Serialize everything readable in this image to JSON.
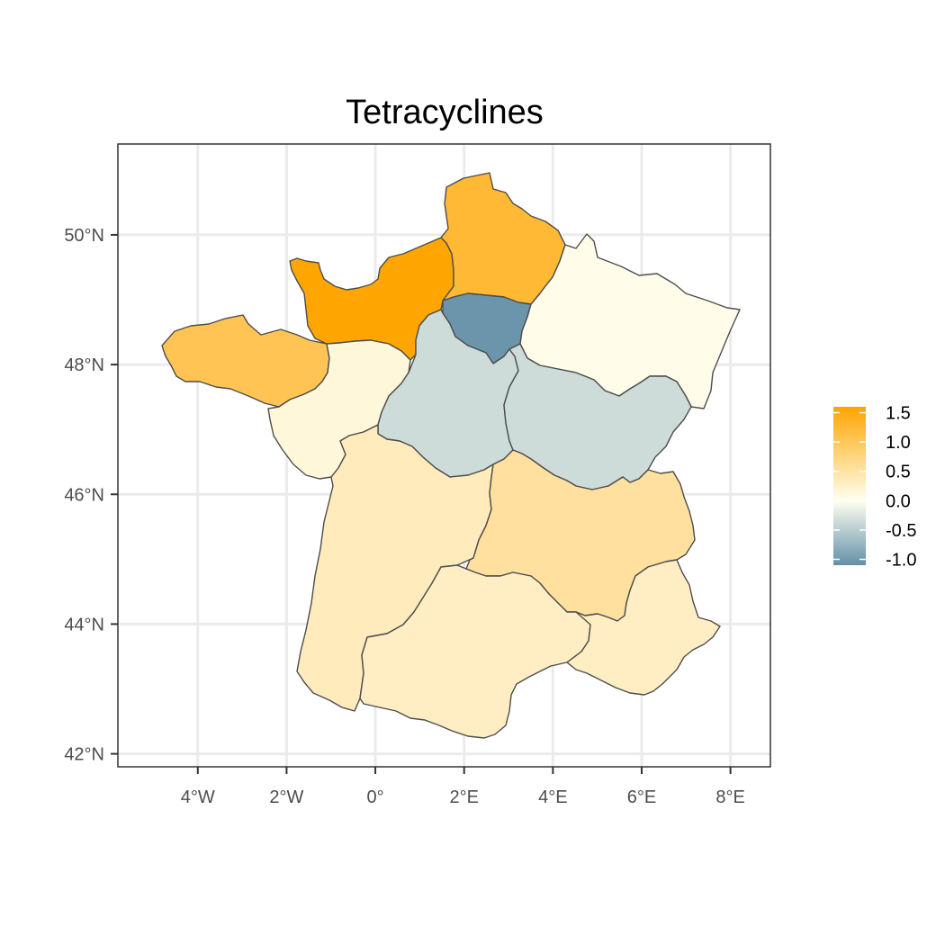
{
  "title": "Tetracyclines",
  "x_ticks": [
    "4°W",
    "2°W",
    "0°",
    "2°E",
    "4°E",
    "6°E",
    "8°E"
  ],
  "y_ticks": [
    "42°N",
    "44°N",
    "46°N",
    "48°N",
    "50°N"
  ],
  "colors": {
    "high": "#FFA500",
    "mid": "#FFFFF0",
    "low": "#6390A8",
    "border": "#4d4d4d",
    "grid": "#ebebeb"
  },
  "legend": {
    "labels": [
      "1.5",
      "1.0",
      "0.5",
      "0.0",
      "-0.5",
      "-1.0"
    ],
    "values": [
      1.5,
      1.0,
      0.5,
      0.0,
      -0.5,
      -1.0
    ],
    "range": [
      -1.1,
      1.6
    ]
  },
  "chart_data": {
    "type": "choropleth",
    "title": "Tetracyclines",
    "x_range": [
      -5.8,
      8.9
    ],
    "y_range": [
      41.8,
      51.4
    ],
    "grid": true,
    "legend_position": "right",
    "regions": [
      {
        "id": "normandie",
        "value": 1.58
      },
      {
        "id": "hauts-de-france",
        "value": 1.25
      },
      {
        "id": "bretagne",
        "value": 1.05
      },
      {
        "id": "ile-de-france",
        "value": -1.05
      },
      {
        "id": "centre-val-de-loire",
        "value": -0.35
      },
      {
        "id": "bourgogne-franche-comte",
        "value": -0.35
      },
      {
        "id": "grand-est",
        "value": 0.05
      },
      {
        "id": "pays-de-la-loire",
        "value": 0.15
      },
      {
        "id": "nouvelle-aquitaine",
        "value": 0.35
      },
      {
        "id": "auvergne-rhone-alpes",
        "value": 0.55
      },
      {
        "id": "occitanie",
        "value": 0.3
      },
      {
        "id": "provence-alpes-cote-dazur",
        "value": 0.3
      }
    ]
  }
}
